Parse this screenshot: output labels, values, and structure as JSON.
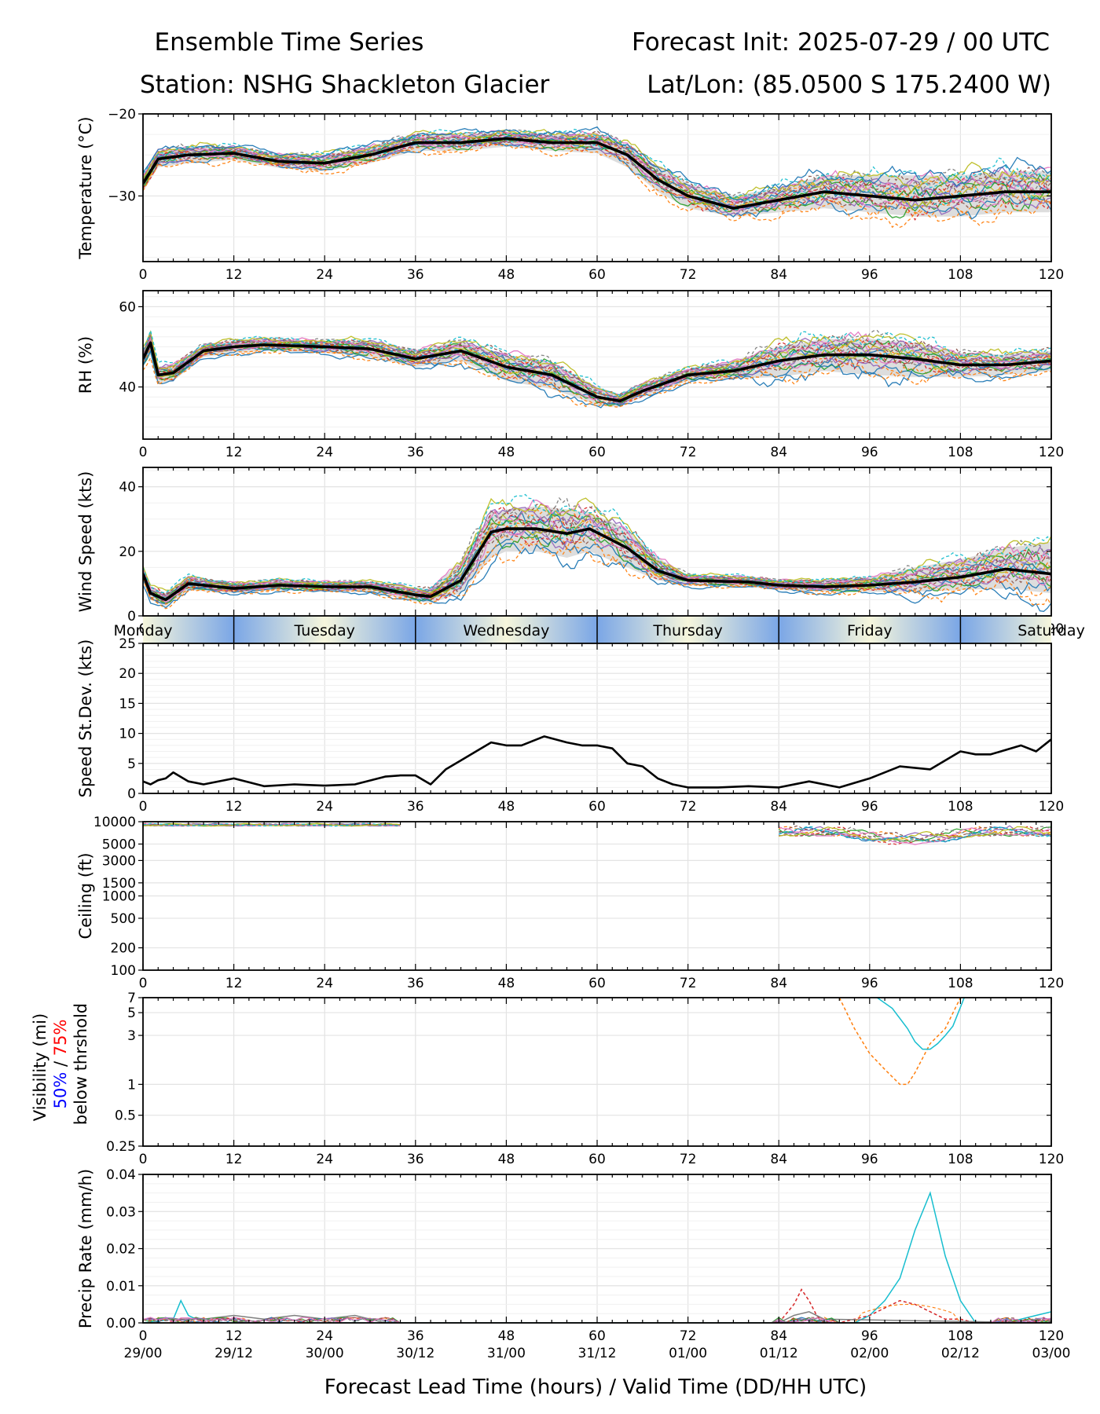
{
  "header": {
    "title_left": "Ensemble Time Series",
    "title_right": "Forecast Init: 2025-07-29 / 00 UTC",
    "station": "Station: NSHG Shackleton Glacier",
    "latlon": "Lat/Lon: (85.0500 S 175.2400 W)"
  },
  "xaxis": {
    "ticks": [
      0,
      12,
      24,
      36,
      48,
      60,
      72,
      84,
      96,
      108,
      120
    ],
    "tick_labels": [
      "0",
      "12",
      "24",
      "36",
      "48",
      "60",
      "72",
      "84",
      "96",
      "108",
      "120"
    ],
    "valid_labels": [
      "29/00",
      "29/12",
      "30/00",
      "30/12",
      "31/00",
      "31/12",
      "01/00",
      "01/12",
      "02/00",
      "02/12",
      "03/00"
    ],
    "label": "Forecast Lead Time (hours) / Valid Time (DD/HH UTC)",
    "range": [
      0,
      120
    ]
  },
  "day_band": {
    "days": [
      "Monday",
      "Tuesday",
      "Wednesday",
      "Thursday",
      "Friday",
      "Saturday"
    ],
    "boundaries_hours": [
      12,
      36,
      60,
      84,
      108
    ],
    "colors": {
      "day": "#f6f6dc",
      "night": "#7aa6e6"
    }
  },
  "colors": {
    "mean": "#000000",
    "spread": "#d9d9d9",
    "members": [
      "#1f77b4",
      "#ff7f0e",
      "#2ca02c",
      "#d62728",
      "#9467bd",
      "#8c564b",
      "#e377c2",
      "#7f7f7f",
      "#bcbd22",
      "#17becf"
    ],
    "vis_50": "#0000ff",
    "vis_75": "#ff0000"
  },
  "chart_data": [
    {
      "id": "temperature",
      "type": "line",
      "ylabel": "Temperature (°C)",
      "ylim": [
        -38,
        -20
      ],
      "yticks": [
        -20,
        -30
      ],
      "ytick_labels": [
        "−20",
        "−30"
      ],
      "x": [
        0,
        2,
        6,
        12,
        18,
        24,
        30,
        36,
        42,
        48,
        54,
        60,
        64,
        68,
        72,
        78,
        84,
        90,
        96,
        102,
        108,
        114,
        120
      ],
      "mean": [
        -28.5,
        -25.5,
        -25,
        -24.8,
        -25.8,
        -26,
        -25,
        -23.5,
        -23.5,
        -23,
        -23.5,
        -23.5,
        -25,
        -28,
        -30,
        -31.5,
        -30.5,
        -29.5,
        -30,
        -30.5,
        -30,
        -29.5,
        -29.5
      ],
      "spread_low": [
        -29.5,
        -26.5,
        -26,
        -25.6,
        -26.6,
        -27,
        -26,
        -24.5,
        -24.5,
        -24,
        -24.5,
        -24.8,
        -26.5,
        -29.5,
        -31.5,
        -32.5,
        -32,
        -31.5,
        -32,
        -32.5,
        -32.5,
        -32,
        -32
      ],
      "spread_high": [
        -27.5,
        -24.5,
        -24,
        -24,
        -25,
        -25,
        -24,
        -22.5,
        -22.5,
        -22.2,
        -22.5,
        -22.5,
        -23.8,
        -26.5,
        -28.5,
        -30,
        -29,
        -27.5,
        -27.5,
        -27.5,
        -27.5,
        -27,
        -27
      ]
    },
    {
      "id": "rh",
      "type": "line",
      "ylabel": "RH (%)",
      "ylim": [
        27,
        64
      ],
      "yticks": [
        60,
        40
      ],
      "ytick_labels": [
        "60",
        "40"
      ],
      "x": [
        0,
        1,
        2,
        4,
        8,
        12,
        16,
        24,
        30,
        36,
        42,
        48,
        54,
        60,
        63,
        66,
        72,
        78,
        84,
        90,
        96,
        102,
        108,
        114,
        120
      ],
      "mean": [
        47,
        51,
        43,
        43.5,
        49,
        50,
        50.5,
        50,
        49.5,
        47,
        49,
        45,
        43,
        37.5,
        36.5,
        39,
        43,
        44,
        46.5,
        48,
        48,
        47,
        45.5,
        45.5,
        46.5
      ],
      "spread_low": [
        45,
        48,
        41,
        41.5,
        47.5,
        48.5,
        49,
        48.5,
        47.5,
        45,
        46.5,
        41.5,
        39.5,
        35.5,
        35,
        37.5,
        41.5,
        42,
        42.5,
        44,
        43,
        42.5,
        42.5,
        43,
        44
      ],
      "spread_high": [
        49,
        53,
        45,
        45.5,
        50.5,
        51.5,
        52,
        51.5,
        51.5,
        49,
        51.5,
        48,
        46,
        40,
        38,
        41,
        44.5,
        46.5,
        50,
        52,
        52,
        51,
        48.5,
        48,
        49
      ]
    },
    {
      "id": "wind_speed",
      "type": "line",
      "ylabel": "Wind Speed (kts)",
      "ylim": [
        0,
        46
      ],
      "yticks": [
        0,
        20,
        40
      ],
      "ytick_labels": [
        "0",
        "20",
        "40"
      ],
      "x": [
        0,
        1,
        3,
        6,
        12,
        18,
        24,
        30,
        36,
        38,
        42,
        46,
        48,
        52,
        56,
        59,
        64,
        68,
        72,
        80,
        84,
        90,
        96,
        102,
        108,
        114,
        120
      ],
      "mean": [
        13,
        7,
        5,
        10,
        8.5,
        9.5,
        9,
        9,
        6.5,
        6,
        11,
        26,
        27,
        27,
        25.5,
        27,
        21,
        14,
        11,
        10.5,
        9.5,
        9,
        9.5,
        10.5,
        12,
        14.5,
        13
      ],
      "spread_low": [
        11,
        5,
        3,
        8,
        7,
        8,
        7.5,
        7.5,
        4.5,
        4,
        7,
        18,
        20,
        20,
        18,
        20,
        15,
        11,
        9.5,
        9,
        8,
        7.5,
        7.5,
        7.5,
        8,
        8.5,
        7
      ],
      "spread_high": [
        15,
        9,
        7,
        12,
        10,
        11,
        10.5,
        10.5,
        8.5,
        8.5,
        17,
        32,
        33,
        34,
        33,
        32,
        27,
        18,
        12.5,
        12,
        11,
        11,
        12,
        15,
        17.5,
        21,
        23
      ]
    },
    {
      "id": "speed_stdev",
      "type": "line",
      "ylabel": "Speed St.Dev. (kts)",
      "ylim": [
        0,
        25
      ],
      "yticks": [
        0,
        5,
        10,
        15,
        20,
        25
      ],
      "ytick_labels": [
        "0",
        "5",
        "10",
        "15",
        "20",
        "25"
      ],
      "x": [
        0,
        1,
        2,
        3,
        4,
        6,
        8,
        12,
        16,
        20,
        24,
        28,
        32,
        34,
        36,
        38,
        40,
        42,
        44,
        46,
        48,
        50,
        53,
        56,
        58,
        60,
        62,
        64,
        66,
        68,
        70,
        72,
        76,
        80,
        84,
        88,
        92,
        96,
        100,
        104,
        108,
        110,
        112,
        116,
        118,
        120
      ],
      "values": [
        2,
        1.5,
        2.2,
        2.5,
        3.5,
        2,
        1.5,
        2.5,
        1.2,
        1.5,
        1.3,
        1.5,
        2.8,
        3,
        3,
        1.5,
        4,
        5.5,
        7,
        8.5,
        8,
        8,
        9.5,
        8.5,
        8,
        8,
        7.5,
        5,
        4.5,
        2.5,
        1.5,
        1,
        1,
        1.2,
        1,
        2,
        1,
        2.5,
        4.5,
        4,
        7,
        6.5,
        6.5,
        8,
        7,
        9
      ]
    },
    {
      "id": "ceiling",
      "type": "line",
      "ylabel": "Ceiling (ft)",
      "scale": "log",
      "ylim": [
        100,
        10000
      ],
      "yticks": [
        100,
        200,
        500,
        1000,
        1500,
        3000,
        5000,
        10000
      ],
      "ytick_labels": [
        "100",
        "200",
        "500",
        "1000",
        "1500",
        "3000",
        "5000",
        "10000"
      ]
    },
    {
      "id": "visibility",
      "type": "line",
      "ylabel": "Visibility (mi)",
      "ylabel_parts": {
        "p50": "50%",
        "sep": "/",
        "p75": "75%",
        "below": "below thrshold"
      },
      "scale": "log",
      "ylim": [
        0.25,
        7
      ],
      "yticks": [
        0.25,
        0.5,
        1,
        3,
        5,
        7
      ],
      "ytick_labels": [
        "0.25",
        "0.5",
        "1",
        "3",
        "5",
        "7"
      ],
      "series": [
        {
          "x": [
            92,
            94,
            96,
            98,
            100,
            101,
            102,
            104,
            106,
            108
          ],
          "values": [
            7,
            3.5,
            2,
            1.4,
            1,
            1,
            1.3,
            2.5,
            3.5,
            7
          ]
        },
        {
          "x": [
            97,
            99,
            101,
            102,
            103,
            104,
            105,
            106,
            107,
            108.5
          ],
          "values": [
            7,
            5.5,
            3.5,
            2.6,
            2.2,
            2.2,
            2.5,
            3,
            3.7,
            7
          ]
        }
      ]
    },
    {
      "id": "precip",
      "type": "line",
      "ylabel": "Precip Rate (mm/h)",
      "ylim": [
        0,
        0.04
      ],
      "yticks": [
        0,
        0.01,
        0.02,
        0.03,
        0.04
      ],
      "ytick_labels": [
        "0.00",
        "0.01",
        "0.02",
        "0.03",
        "0.04"
      ],
      "series": [
        {
          "x": [
            0,
            4,
            5,
            6,
            8,
            16,
            24,
            30,
            84,
            88,
            90,
            94,
            96,
            98,
            100,
            102,
            104,
            106,
            108,
            110,
            114,
            118,
            120
          ],
          "values": [
            0,
            0.001,
            0.006,
            0.002,
            0,
            0,
            0,
            0,
            0,
            0.001,
            0,
            0,
            0.002,
            0.006,
            0.012,
            0.025,
            0.035,
            0.018,
            0.006,
            0,
            0,
            0.002,
            0.003
          ]
        },
        {
          "x": [
            84,
            86,
            87,
            88,
            89,
            90,
            92,
            96,
            98,
            100,
            102,
            104,
            106,
            108,
            110,
            120
          ],
          "values": [
            0,
            0.005,
            0.009,
            0.006,
            0.002,
            0,
            0,
            0.002,
            0.004,
            0.006,
            0.005,
            0.003,
            0.001,
            0.001,
            0,
            0.001
          ]
        },
        {
          "x": [
            0,
            8,
            12,
            16,
            20,
            24,
            28,
            32,
            84,
            86,
            88,
            90,
            120
          ],
          "values": [
            0.001,
            0.001,
            0.002,
            0.001,
            0.002,
            0.001,
            0.002,
            0,
            0,
            0.002,
            0.003,
            0.001,
            0
          ]
        }
      ]
    }
  ]
}
